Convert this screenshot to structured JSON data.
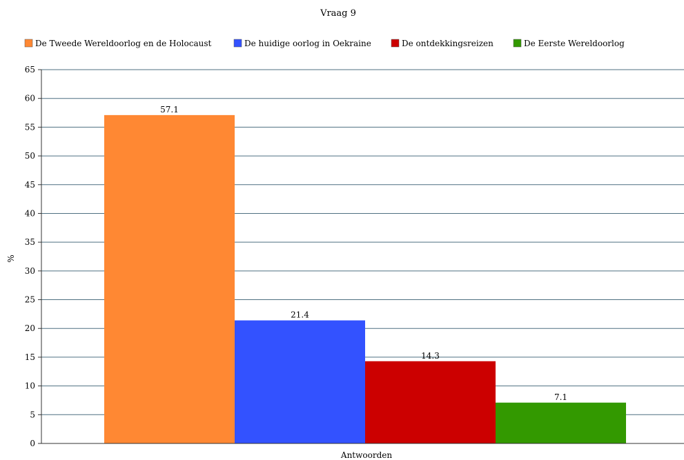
{
  "chart_data": {
    "type": "bar",
    "title": "Vraag 9",
    "xlabel": "Antwoorden",
    "ylabel": "%",
    "ylim": [
      0,
      65
    ],
    "yticks": [
      0,
      5,
      10,
      15,
      20,
      25,
      30,
      35,
      40,
      45,
      50,
      55,
      60,
      65
    ],
    "grid": true,
    "legend_position": "top",
    "series": [
      {
        "name": "De Tweede Wereldoorlog en de Holocaust",
        "values": [
          57.1
        ],
        "color": "#ff8833",
        "label": "57.1"
      },
      {
        "name": "De huidige oorlog in Oekraine",
        "values": [
          21.4
        ],
        "color": "#3352ff",
        "label": "21.4"
      },
      {
        "name": "De ontdekkingsreizen",
        "values": [
          14.3
        ],
        "color": "#cc0000",
        "label": "14.3"
      },
      {
        "name": "De Eerste Wereldoorlog",
        "values": [
          7.1
        ],
        "color": "#339900",
        "label": "7.1"
      }
    ],
    "colors": {
      "grid": "#4d6f80",
      "axis": "#333333"
    }
  }
}
